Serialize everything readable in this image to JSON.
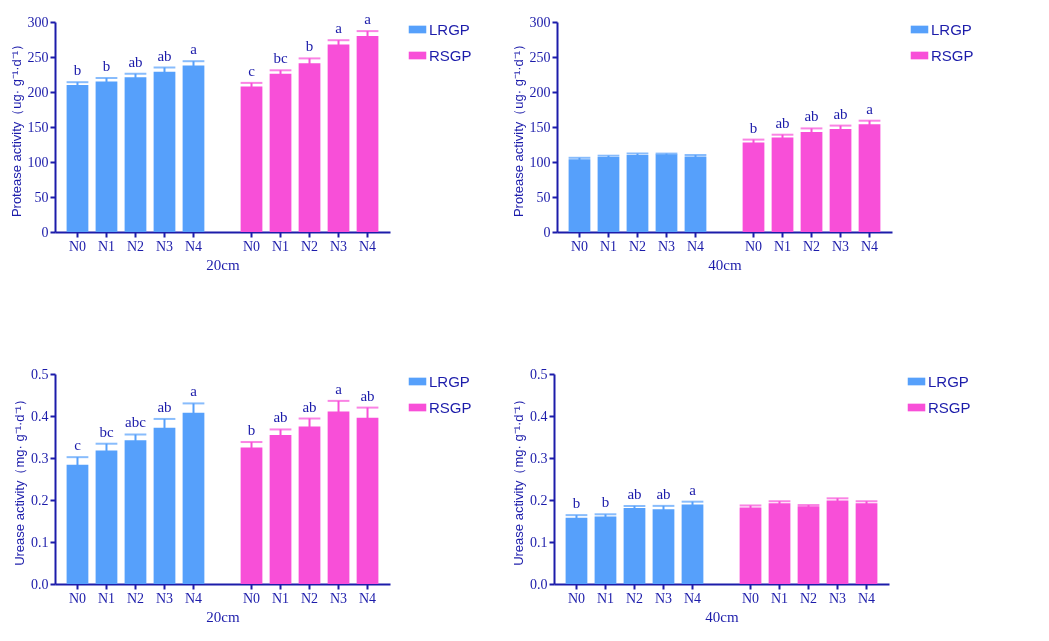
{
  "chart_data": [
    {
      "type": "bar",
      "xlabel": "20cm",
      "ylabel": "Protease activity（ug· g⁻¹·d⁻¹）",
      "categories": [
        "N0",
        "N1",
        "N2",
        "N3",
        "N4",
        "N0",
        "N1",
        "N2",
        "N3",
        "N4"
      ],
      "ylim": [
        0,
        300
      ],
      "yticks": [
        0,
        50,
        100,
        150,
        200,
        250,
        300
      ],
      "legend": "top right",
      "series": [
        {
          "name": "LRGP",
          "color": "#56a0fb",
          "values": [
            210,
            215,
            221,
            229,
            238,
            null,
            null,
            null,
            null,
            null
          ],
          "errors": [
            4,
            5,
            5,
            6,
            6,
            null,
            null,
            null,
            null,
            null
          ],
          "value_labels": [
            "b",
            "b",
            "ab",
            "ab",
            "a",
            null,
            null,
            null,
            null,
            null
          ]
        },
        {
          "name": "RSGP",
          "color": "#f84fd8",
          "values": [
            null,
            null,
            null,
            null,
            null,
            208,
            226,
            241,
            268,
            280
          ],
          "errors": [
            null,
            null,
            null,
            null,
            null,
            5,
            5,
            7,
            6,
            7
          ],
          "value_labels": [
            null,
            null,
            null,
            null,
            null,
            "c",
            "bc",
            "b",
            "a",
            "a"
          ]
        }
      ]
    },
    {
      "type": "bar",
      "xlabel": "40cm",
      "ylabel": "Protease activity（ug· g⁻¹·d⁻¹）",
      "categories": [
        "N0",
        "N1",
        "N2",
        "N3",
        "N4",
        "N0",
        "N1",
        "N2",
        "N3",
        "N4"
      ],
      "ylim": [
        0,
        300
      ],
      "yticks": [
        0,
        50,
        100,
        150,
        200,
        250,
        300
      ],
      "legend": "top right",
      "series": [
        {
          "name": "LRGP",
          "color": "#56a0fb",
          "values": [
            104,
            107,
            110,
            111,
            108,
            null,
            null,
            null,
            null,
            null
          ],
          "errors": [
            2,
            2,
            2,
            1,
            2,
            null,
            null,
            null,
            null,
            null
          ]
        },
        {
          "name": "RSGP",
          "color": "#f84fd8",
          "values": [
            null,
            null,
            null,
            null,
            null,
            128,
            135,
            143,
            147,
            154
          ],
          "errors": [
            null,
            null,
            null,
            null,
            null,
            4,
            4,
            5,
            5,
            5
          ],
          "value_labels": [
            null,
            null,
            null,
            null,
            null,
            "b",
            "ab",
            "ab",
            "ab",
            "a"
          ]
        }
      ]
    },
    {
      "type": "bar",
      "xlabel": "20cm",
      "ylabel": "Urease activity（mg· g⁻¹·d⁻¹）",
      "categories": [
        "N0",
        "N1",
        "N2",
        "N3",
        "N4",
        "N0",
        "N1",
        "N2",
        "N3",
        "N4"
      ],
      "ylim": [
        0,
        0.5
      ],
      "yticks": [
        {
          "value": 0,
          "label": "0.0"
        },
        0.1,
        0.2,
        0.3,
        0.4,
        0.5
      ],
      "legend": "top right",
      "series": [
        {
          "name": "LRGP",
          "color": "#56a0fb",
          "values": [
            0.284,
            0.318,
            0.342,
            0.372,
            0.408,
            null,
            null,
            null,
            null,
            null
          ],
          "errors": [
            0.018,
            0.016,
            0.014,
            0.021,
            0.022,
            null,
            null,
            null,
            null,
            null
          ],
          "value_labels": [
            "c",
            "bc",
            "abc",
            "ab",
            "a",
            null,
            null,
            null,
            null,
            null
          ]
        },
        {
          "name": "RSGP",
          "color": "#f84fd8",
          "values": [
            null,
            null,
            null,
            null,
            null,
            0.325,
            0.355,
            0.375,
            0.411,
            0.396
          ],
          "errors": [
            null,
            null,
            null,
            null,
            null,
            0.013,
            0.013,
            0.019,
            0.025,
            0.024
          ],
          "value_labels": [
            null,
            null,
            null,
            null,
            null,
            "b",
            "ab",
            "ab",
            "a",
            "ab"
          ]
        }
      ]
    },
    {
      "type": "bar",
      "xlabel": "40cm",
      "ylabel": "Urease activity（mg· g⁻¹·d⁻¹）",
      "categories": [
        "N0",
        "N1",
        "N2",
        "N3",
        "N4",
        "N0",
        "N1",
        "N2",
        "N3",
        "N4"
      ],
      "ylim": [
        0,
        0.5
      ],
      "yticks": [
        {
          "value": 0,
          "label": "0.0"
        },
        0.1,
        0.2,
        0.3,
        0.4,
        0.5
      ],
      "legend": "top right",
      "series": [
        {
          "name": "LRGP",
          "color": "#56a0fb",
          "values": [
            0.158,
            0.161,
            0.181,
            0.178,
            0.189,
            null,
            null,
            null,
            null,
            null
          ],
          "errors": [
            0.006,
            0.005,
            0.005,
            0.008,
            0.007,
            null,
            null,
            null,
            null,
            null
          ],
          "value_labels": [
            "b",
            "b",
            "ab",
            "ab",
            "a",
            null,
            null,
            null,
            null,
            null
          ]
        },
        {
          "name": "RSGP",
          "color": "#f84fd8",
          "values": [
            null,
            null,
            null,
            null,
            null,
            0.182,
            0.192,
            0.185,
            0.199,
            0.192
          ],
          "errors": [
            null,
            null,
            null,
            null,
            null,
            0.005,
            0.005,
            0.003,
            0.005,
            0.005
          ]
        }
      ]
    }
  ]
}
